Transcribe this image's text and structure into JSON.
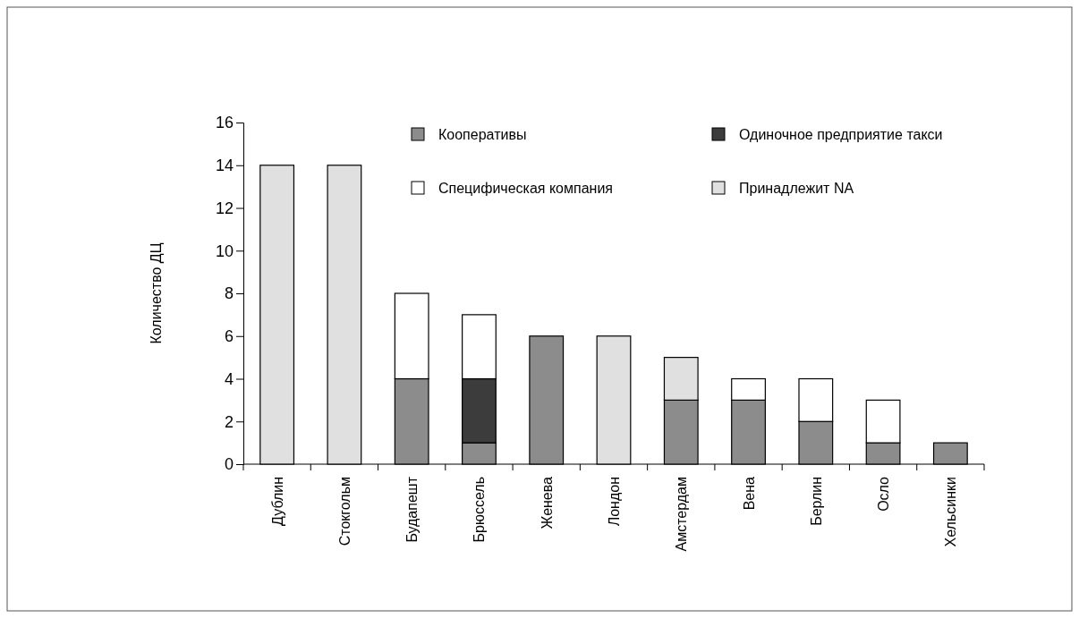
{
  "chart_data": {
    "type": "bar",
    "stacked": true,
    "ylabel": "Количество ДЦ",
    "categories": [
      "Дублин",
      "Стокгольм",
      "Будапешт",
      "Брюссель",
      "Женева",
      "Лондон",
      "Амстердам",
      "Вена",
      "Берлин",
      "Осло",
      "Хельсинки"
    ],
    "series": [
      {
        "name": "Кооперативы",
        "color": "#8c8c8c",
        "values": [
          0,
          0,
          4,
          1,
          6,
          0,
          3,
          3,
          2,
          1,
          1
        ]
      },
      {
        "name": "Одиночное предприятие такси",
        "color": "#3c3c3c",
        "values": [
          0,
          0,
          0,
          3,
          0,
          0,
          0,
          0,
          0,
          0,
          0
        ]
      },
      {
        "name": "Специфическая компания",
        "color": "#ffffff",
        "values": [
          0,
          0,
          4,
          3,
          0,
          0,
          0,
          1,
          2,
          2,
          0
        ]
      },
      {
        "name": "Принадлежит NA",
        "color": "#e0e0e0",
        "values": [
          14,
          14,
          0,
          0,
          0,
          6,
          2,
          0,
          0,
          0,
          0
        ]
      }
    ],
    "ylim": [
      0,
      16
    ],
    "yticks": [
      0,
      2,
      4,
      6,
      8,
      10,
      12,
      14,
      16
    ],
    "grid": false,
    "legend": "top"
  }
}
